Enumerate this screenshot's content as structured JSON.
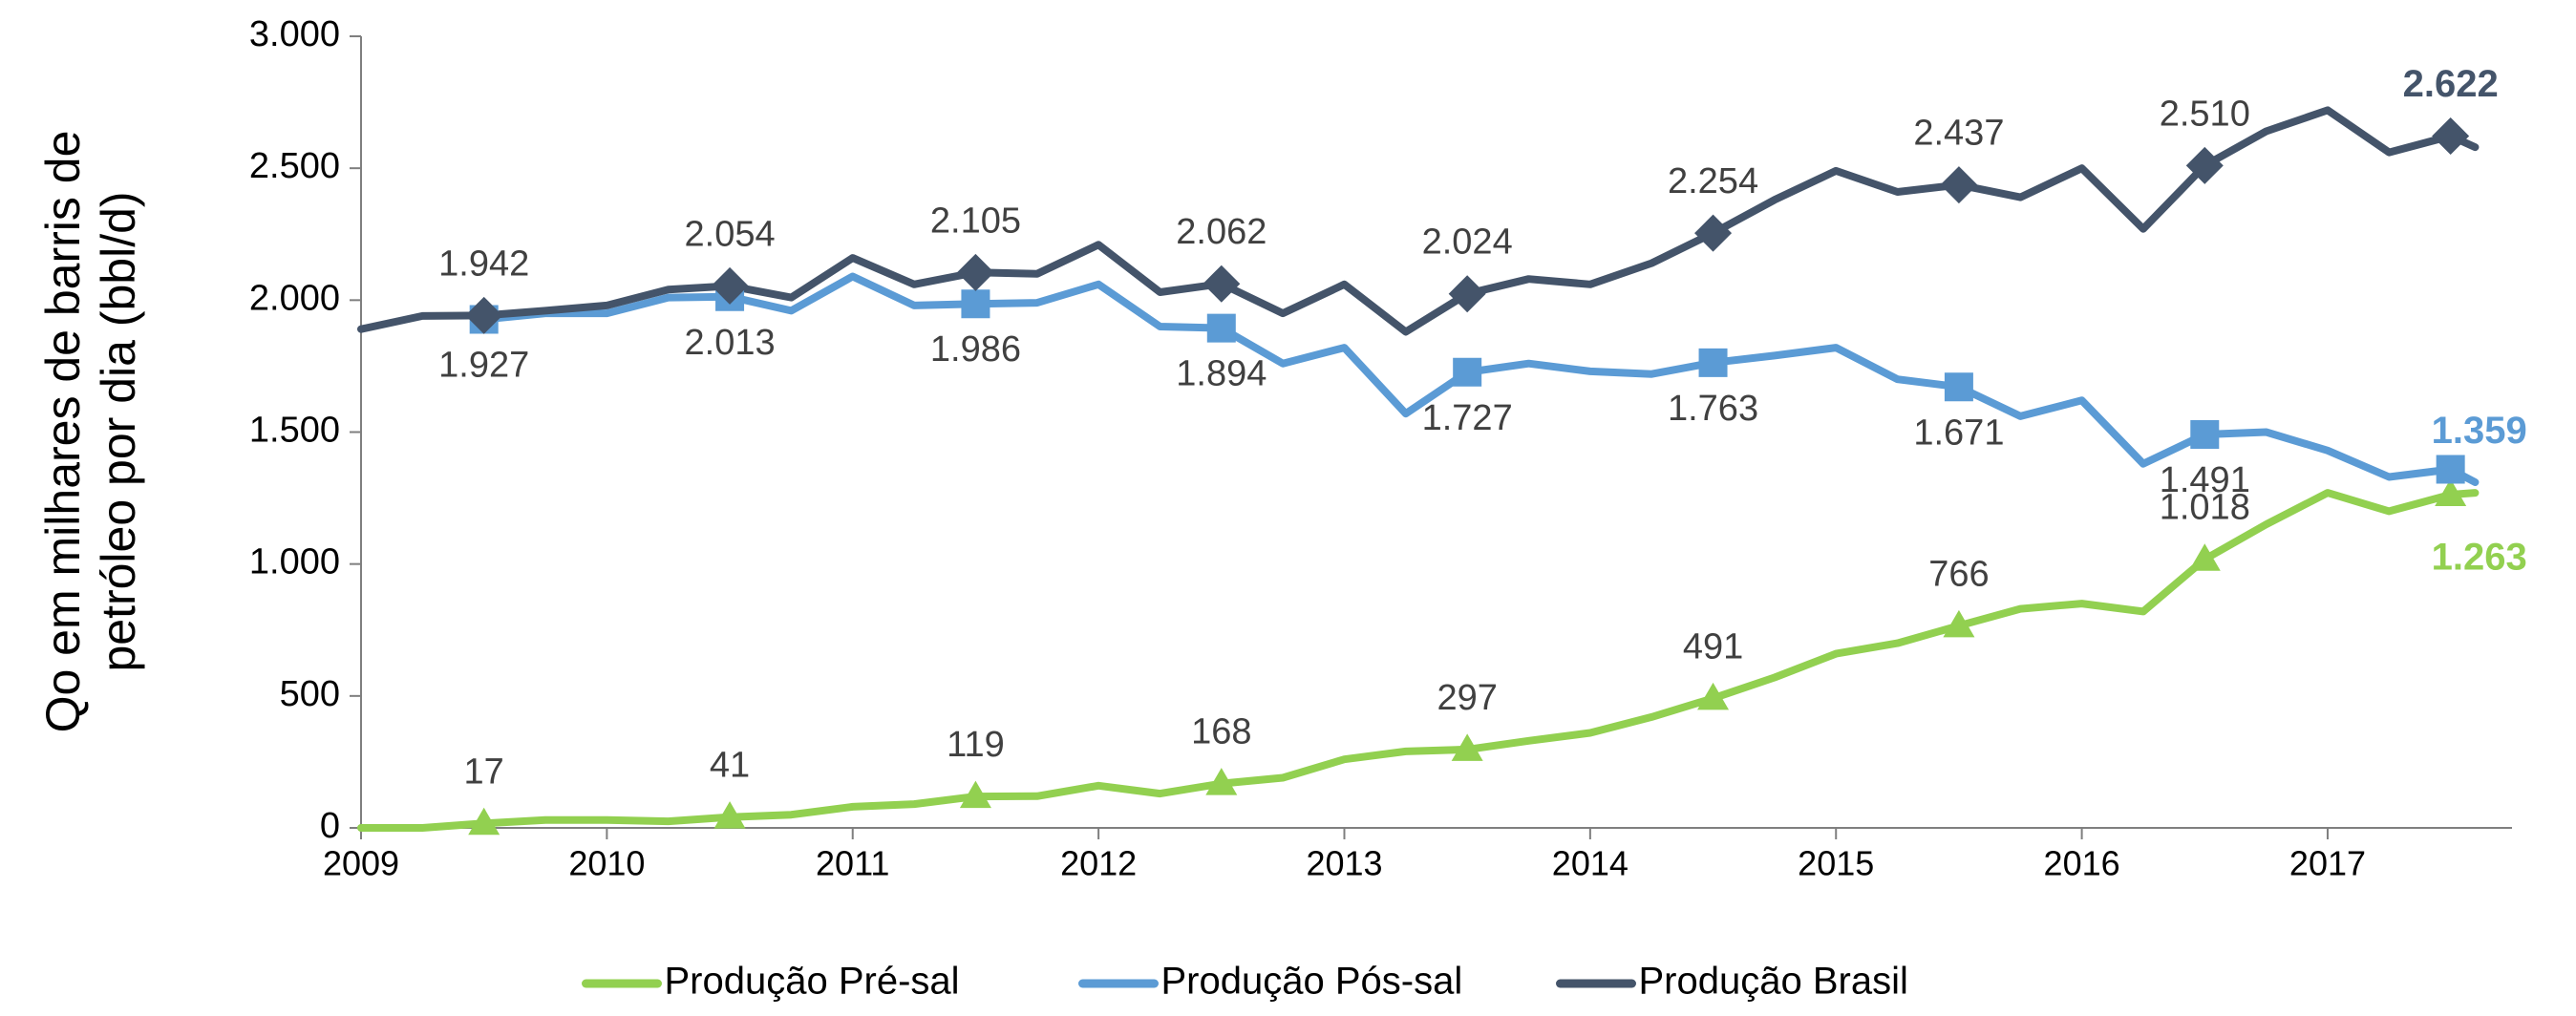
{
  "chart_data": {
    "type": "line",
    "ylabel": [
      "Qo em milhares de barris de",
      "petróleo por dia (bbl/d)"
    ],
    "x": [
      2009,
      2009.25,
      2009.5,
      2009.75,
      2010,
      2010.25,
      2010.5,
      2010.75,
      2011,
      2011.25,
      2011.5,
      2011.75,
      2012,
      2012.25,
      2012.5,
      2012.75,
      2013,
      2013.25,
      2013.5,
      2013.75,
      2014,
      2014.25,
      2014.5,
      2014.75,
      2015,
      2015.25,
      2015.5,
      2015.75,
      2016,
      2016.25,
      2016.5,
      2016.75,
      2017,
      2017.25,
      2017.5,
      2017.6
    ],
    "xlim": [
      2009,
      2017.75
    ],
    "xticks": [
      2009,
      2010,
      2011,
      2012,
      2013,
      2014,
      2015,
      2016,
      2017
    ],
    "ylim": [
      0,
      3000
    ],
    "yticks": [
      0,
      500,
      {
        "value": 1000,
        "label": "1.000"
      },
      {
        "value": 1500,
        "label": "1.500"
      },
      {
        "value": 2000,
        "label": "2.000"
      },
      {
        "value": 2500,
        "label": "2.500"
      },
      {
        "value": 3000,
        "label": "3.000"
      }
    ],
    "grid": false,
    "legend": "bottom",
    "series": [
      {
        "name": "Produção Pré-sal",
        "color": "#92d050",
        "marker": "triangle",
        "values": [
          0,
          0,
          17,
          30,
          30,
          25,
          41,
          50,
          80,
          90,
          119,
          120,
          160,
          130,
          168,
          190,
          260,
          290,
          297,
          330,
          360,
          420,
          491,
          570,
          660,
          700,
          766,
          830,
          850,
          820,
          1018,
          1150,
          1270,
          1200,
          1263,
          1270
        ],
        "points": {
          "x": [
            2009.5,
            2010.5,
            2011.5,
            2012.5,
            2013.5,
            2014.5,
            2015.5,
            2016.5,
            2017.5
          ],
          "values": [
            17,
            41,
            119,
            168,
            297,
            491,
            766,
            1018,
            1263
          ],
          "value_labels": [
            "17",
            "41",
            "119",
            "168",
            "297",
            "491",
            "766",
            "1.018",
            "1.263"
          ]
        }
      },
      {
        "name": "Produção Pós-sal",
        "color": "#5b9bd5",
        "marker": "square",
        "values": [
          null,
          null,
          1927,
          1950,
          1950,
          2010,
          2013,
          1960,
          2090,
          1980,
          1986,
          1990,
          2060,
          1900,
          1894,
          1760,
          1820,
          1570,
          1727,
          1760,
          1730,
          1720,
          1763,
          1790,
          1820,
          1700,
          1671,
          1560,
          1620,
          1380,
          1491,
          1500,
          1430,
          1330,
          1359,
          1310
        ],
        "points": {
          "x": [
            2009.5,
            2010.5,
            2011.5,
            2012.5,
            2013.5,
            2014.5,
            2015.5,
            2016.5,
            2017.5
          ],
          "values": [
            1927,
            2013,
            1986,
            1894,
            1727,
            1763,
            1671,
            1491,
            1359
          ],
          "value_labels": [
            "1.927",
            "2.013",
            "1.986",
            "1.894",
            "1.727",
            "1.763",
            "1.671",
            "1.491",
            "1.359"
          ]
        }
      },
      {
        "name": "Produção Brasil",
        "color": "#44546a",
        "marker": "diamond",
        "values": [
          1890,
          1940,
          1942,
          1960,
          1980,
          2040,
          2054,
          2010,
          2160,
          2060,
          2105,
          2100,
          2210,
          2030,
          2062,
          1950,
          2060,
          1880,
          2024,
          2080,
          2060,
          2140,
          2254,
          2380,
          2490,
          2410,
          2437,
          2390,
          2500,
          2270,
          2510,
          2640,
          2720,
          2560,
          2622,
          2580
        ],
        "points": {
          "x": [
            2009.5,
            2010.5,
            2011.5,
            2012.5,
            2013.5,
            2014.5,
            2015.5,
            2016.5,
            2017.5
          ],
          "values": [
            1942,
            2054,
            2105,
            2062,
            2024,
            2254,
            2437,
            2510,
            2622
          ],
          "value_labels": [
            "1.942",
            "2.054",
            "2.105",
            "2.062",
            "2.024",
            "2.254",
            "2.437",
            "2.510",
            "2.622"
          ]
        }
      }
    ]
  }
}
